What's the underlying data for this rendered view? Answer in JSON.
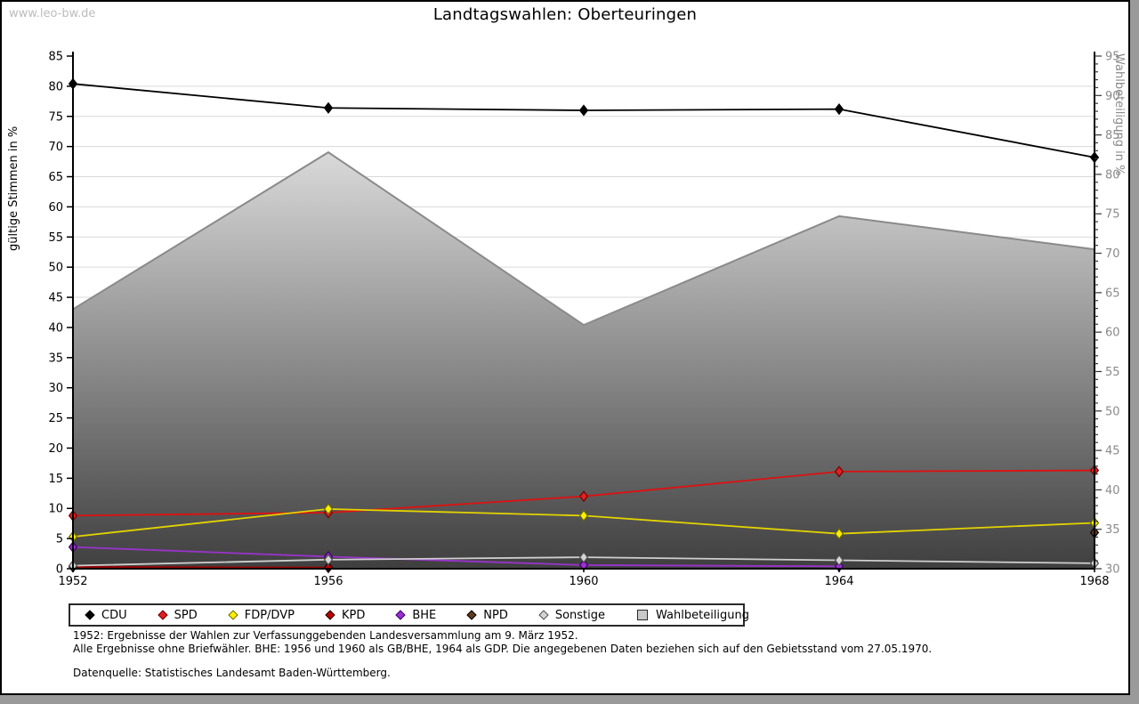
{
  "watermark": "www.leo-bw.de",
  "title": "Landtagswahlen: Oberteuringen",
  "footnotes": {
    "line1": "1952: Ergebnisse der Wahlen zur Verfassunggebenden Landesversammlung am 9. März 1952.",
    "line2": "Alle Ergebnisse ohne Briefwähler. BHE: 1956 und 1960 als GB/BHE, 1964 als GDP. Die angegebenen Daten beziehen sich auf den Gebietsstand vom 27.05.1970.",
    "source": "Datenquelle: Statistisches Landesamt Baden-Württemberg."
  },
  "chart_data": {
    "type": "line",
    "title": "Landtagswahlen: Oberteuringen",
    "categories": [
      "1952",
      "1956",
      "1960",
      "1964",
      "1968"
    ],
    "left_axis": {
      "label": "gültige Stimmen in %",
      "min": 0,
      "max": 85,
      "major_step": 5
    },
    "right_axis": {
      "label": "Wahlbeteiligung in %",
      "min": 30,
      "max": 95,
      "major_step": 5,
      "minor_step": 1,
      "label_color": "#8a8a8a"
    },
    "grid": true,
    "legend_position": "bottom",
    "grid_color": "#d9d9d9",
    "series": [
      {
        "name": "CDU",
        "type": "line",
        "axis": "left",
        "line_color": "#000000",
        "marker_fill": "#000000",
        "marker_stroke": "#000000",
        "values": [
          80.4,
          76.4,
          76.0,
          76.2,
          68.2
        ]
      },
      {
        "name": "SPD",
        "type": "line",
        "axis": "left",
        "line_color": "#dd1111",
        "marker_fill": "#e02020",
        "marker_stroke": "#700000",
        "values": [
          8.8,
          9.3,
          12.0,
          16.1,
          16.3
        ]
      },
      {
        "name": "FDP/DVP",
        "type": "line",
        "axis": "left",
        "line_color": "#e3d300",
        "marker_fill": "#ffee00",
        "marker_stroke": "#6b6b00",
        "values": [
          5.3,
          9.9,
          8.8,
          5.8,
          7.6
        ]
      },
      {
        "name": "KPD",
        "type": "line",
        "axis": "left",
        "line_color": "#990000",
        "marker_fill": "#bb0000",
        "marker_stroke": "#200000",
        "values": [
          0.3,
          0.2,
          null,
          null,
          null
        ]
      },
      {
        "name": "BHE",
        "type": "line",
        "axis": "left",
        "line_color": "#9933cc",
        "marker_fill": "#9b30d0",
        "marker_stroke": "#3d0066",
        "values": [
          3.6,
          2.0,
          0.6,
          0.4,
          null
        ]
      },
      {
        "name": "NPD",
        "type": "line",
        "axis": "left",
        "line_color": "#5f3a1e",
        "marker_fill": "#5f3a1e",
        "marker_stroke": "#000000",
        "values": [
          null,
          null,
          null,
          null,
          6.0
        ]
      },
      {
        "name": "Sonstige",
        "type": "line",
        "axis": "left",
        "line_color": "#cfcfcf",
        "marker_fill": "#d4d4d4",
        "marker_stroke": "#4d4d4d",
        "values": [
          0.5,
          1.5,
          1.9,
          1.4,
          0.9
        ]
      },
      {
        "name": "Wahlbeteiligung",
        "type": "area",
        "axis": "right",
        "line_color": "#8a8a8a",
        "fill_top": "#fdfdfd",
        "fill_bottom": "#3f3f3f",
        "values": [
          62.9,
          82.8,
          60.9,
          74.7,
          70.5
        ]
      }
    ]
  }
}
